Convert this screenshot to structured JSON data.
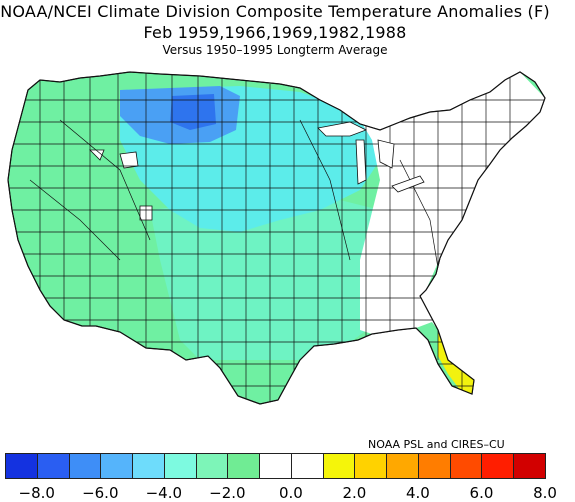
{
  "header": {
    "title_line1": "NOAA/NCEI Climate Division Composite Temperature Anomalies (F)",
    "title_line2": "Feb  1959,1966,1969,1982,1988",
    "subtitle": "Versus 1950–1995 Longterm Average"
  },
  "credit": "NOAA PSL and CIRES–CU",
  "legend": {
    "colors": [
      "#1432e0",
      "#2a5ef2",
      "#3e8ef7",
      "#55b4fb",
      "#6edcfb",
      "#7dfae0",
      "#7df5b8",
      "#70ec94",
      "#ffffff",
      "#ffffff",
      "#f5f50a",
      "#ffd200",
      "#ffa800",
      "#ff7d00",
      "#ff4b00",
      "#ff1e00",
      "#d20000"
    ],
    "ticks": [
      "−8.0",
      "−6.0",
      "−4.0",
      "−2.0",
      "0.0",
      "2.0",
      "4.0",
      "6.0",
      "8.0"
    ]
  },
  "map": {
    "region_colors": {
      "west": "#6ff0a2",
      "plains": "#6ef3c3",
      "north_plains": "#5cecea",
      "montana_core": "#2e74ee",
      "montana_ring": "#4aa0f4",
      "east_white": "#ffffff",
      "florida": "#f2f20f"
    }
  }
}
